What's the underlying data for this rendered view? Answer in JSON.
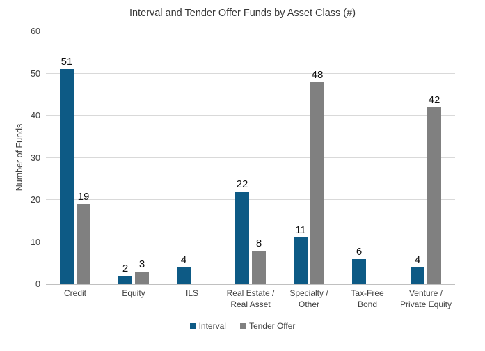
{
  "chart_data": {
    "type": "bar",
    "title": "Interval and Tender Offer Funds by Asset Class (#)",
    "xlabel": "",
    "ylabel": "Number of Funds",
    "ylim": [
      0,
      60
    ],
    "yticks": [
      0,
      10,
      20,
      30,
      40,
      50,
      60
    ],
    "grid": true,
    "legend_position": "bottom",
    "data_labels": true,
    "categories": [
      {
        "label": "Credit",
        "lines": [
          "Credit"
        ]
      },
      {
        "label": "Equity",
        "lines": [
          "Equity"
        ]
      },
      {
        "label": "ILS",
        "lines": [
          "ILS"
        ]
      },
      {
        "label": "Real Estate / Real Asset",
        "lines": [
          "Real Estate /",
          "Real Asset"
        ]
      },
      {
        "label": "Specialty / Other",
        "lines": [
          "Specialty /",
          "Other"
        ]
      },
      {
        "label": "Tax-Free Bond",
        "lines": [
          "Tax-Free",
          "Bond"
        ]
      },
      {
        "label": "Venture / Private Equity",
        "lines": [
          "Venture /",
          "Private Equity"
        ]
      }
    ],
    "series": [
      {
        "name": "Interval",
        "color": "#0D5A85",
        "values": [
          51,
          2,
          4,
          22,
          11,
          6,
          4
        ]
      },
      {
        "name": "Tender Offer",
        "color": "#808080",
        "values": [
          19,
          3,
          null,
          8,
          48,
          null,
          42
        ]
      }
    ]
  },
  "style_colors": {
    "gridline": "#d9d9d9",
    "axis_line": "#c0c0c0",
    "text": "#404040",
    "data_label": "#111111"
  }
}
